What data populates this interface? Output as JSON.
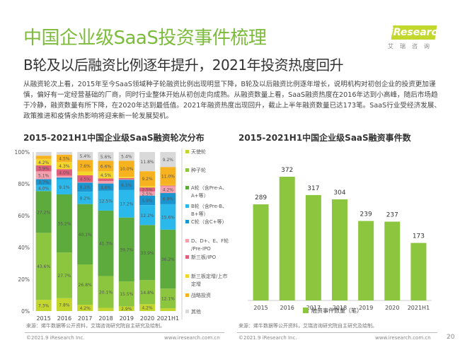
{
  "header": {
    "title": "中国企业级SaaS投资事件梳理",
    "subtitle": "B轮及以后融资比例逐年提升，2021年投资热度回升",
    "logo_text": "iResearch",
    "logo_cn": "艾瑞咨询"
  },
  "paragraph": "从融资轮次上看，2015年至今SaaS领域种子轮融资比例出现明显下降，B轮及以后融资比例逐年增长，说明机构对初创企业的投资更加谨慎，偏好有一定经营基础的厂商，同时行业整体开始从初创走向成熟。从融资数量上看，SaaS融资热度在2016年达到小高峰，随后市场趋于冷静，融资数量有所下降，在2020年达到最低值。2021年融资热度出现回升，截止上半年融资数量已达173笔。SaaS行业受经济发展、政策推进和疫情余热影响将迎来新一轮发展契机。",
  "chart_data": [
    {
      "type": "bar",
      "stacked": true,
      "title": "2015-2021H1中国企业级SaaS融资轮次分布",
      "categories": [
        "2015",
        "2016",
        "2017",
        "2018",
        "2019",
        "2020",
        "2021H1"
      ],
      "yticks": [
        "0%",
        "20%",
        "40%",
        "60%",
        "80%",
        "100%"
      ],
      "ylim": [
        0,
        100
      ],
      "legend_position": "right",
      "series": [
        {
          "name": "天使轮",
          "color": "#c2d62e",
          "values": [
            7.3,
            7.8,
            4.2,
            2.0,
            2.9,
            4.2,
            1.7
          ]
        },
        {
          "name": "种子轮",
          "color": "#8cc63f",
          "values": [
            43.6,
            27.7,
            26.8,
            20.1,
            15.5,
            14.8,
            12.1
          ]
        },
        {
          "name": "A轮（含Pre-A、A+等）",
          "color": "#5dab3c",
          "values": [
            27.2,
            35.2,
            40.1,
            41.3,
            39.7,
            33.9,
            36.2
          ]
        },
        {
          "name": "B轮（含Pre-B、B+等）",
          "color": "#2bb8ea",
          "values": [
            4.0,
            9.1,
            8.2,
            12.5,
            17.2,
            12.2,
            15.6
          ]
        },
        {
          "name": "C轮（含C+等）",
          "color": "#1a95d0",
          "values": [
            3.7,
            1.1,
            6.1,
            4.6,
            6.3,
            5.9,
            6.9
          ]
        },
        {
          "name": "D、D+、E、F轮/Pre-IPO",
          "color": "#f4a0ae",
          "values": [
            5.1,
            1.1,
            0.3,
            1.6,
            0.2,
            2.5,
            4.2
          ]
        },
        {
          "name": "新三板/IPO",
          "color": "#e0607c",
          "values": [
            3.9,
            4.0,
            4.5,
            1.6,
            0.8,
            2.5,
            0.4
          ]
        },
        {
          "name": "新三板定增/上市定增",
          "color": "#f4d52a",
          "values": [
            4.2,
            4.3,
            2.5,
            4.5,
            0.8,
            0.8,
            0.4
          ]
        },
        {
          "name": "战略投资",
          "color": "#f7b21f",
          "values": [
            2.1,
            4.5,
            7.6,
            6.6,
            10.0,
            9.2,
            11.0
          ]
        },
        {
          "name": "其他",
          "color": "#d9d9d9",
          "values": [
            2.4,
            1.6,
            5.4,
            5.6,
            5.4,
            11.8,
            9.2
          ]
        }
      ],
      "source": "来源：烯牛数据等公开资料，艾瑞咨询研究院自主研究及绘制。"
    },
    {
      "type": "bar",
      "title": "2015-2021H1中国企业级SaaS融资事件数",
      "categories": [
        "2015",
        "2016",
        "2017",
        "2018",
        "2019",
        "2020",
        "2021H1"
      ],
      "series": [
        {
          "name": "融资事件数量（笔）",
          "color": "#8cc63f",
          "values": [
            289,
            372,
            317,
            304,
            239,
            237,
            173
          ]
        }
      ],
      "legend_position": "bottom",
      "source": "来源：烯牛数据等公开资料，艾瑞咨询研究院自主研究及绘制。"
    }
  ],
  "footer": {
    "copyright": "©2021.9 iResearch Inc.",
    "website": "www.iresearch.com.cn",
    "page": "20"
  }
}
